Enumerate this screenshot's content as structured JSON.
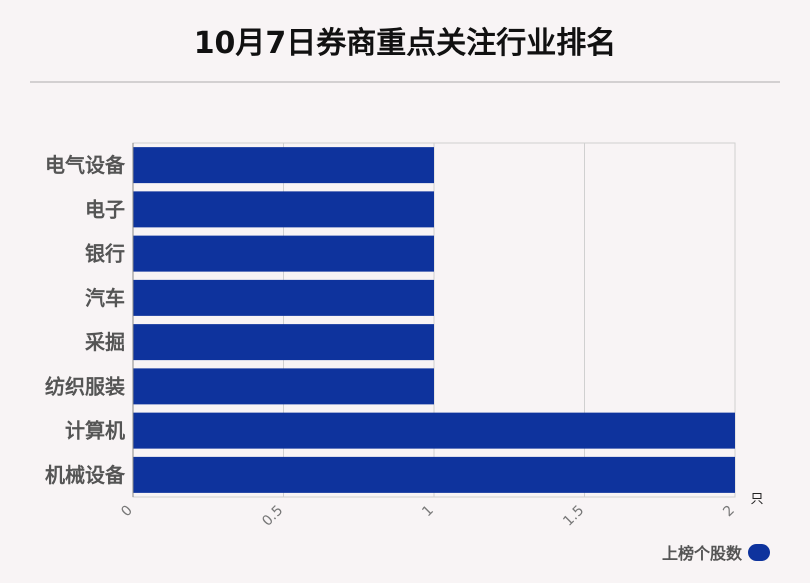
{
  "title": "10月7日券商重点关注行业排名",
  "chart_data": {
    "type": "bar",
    "orientation": "horizontal",
    "categories": [
      "电气设备",
      "电子",
      "银行",
      "汽车",
      "采掘",
      "纺织服装",
      "计算机",
      "机械设备"
    ],
    "series": [
      {
        "name": "上榜个股数",
        "values": [
          1,
          1,
          1,
          1,
          1,
          1,
          2,
          2
        ],
        "color": "#0e339d"
      }
    ],
    "xlim": [
      0,
      2
    ],
    "xticks": [
      "0",
      "0.5",
      "1",
      "1.5",
      "2"
    ],
    "xunit": "只",
    "grid": true,
    "legend": "bottom-right"
  }
}
